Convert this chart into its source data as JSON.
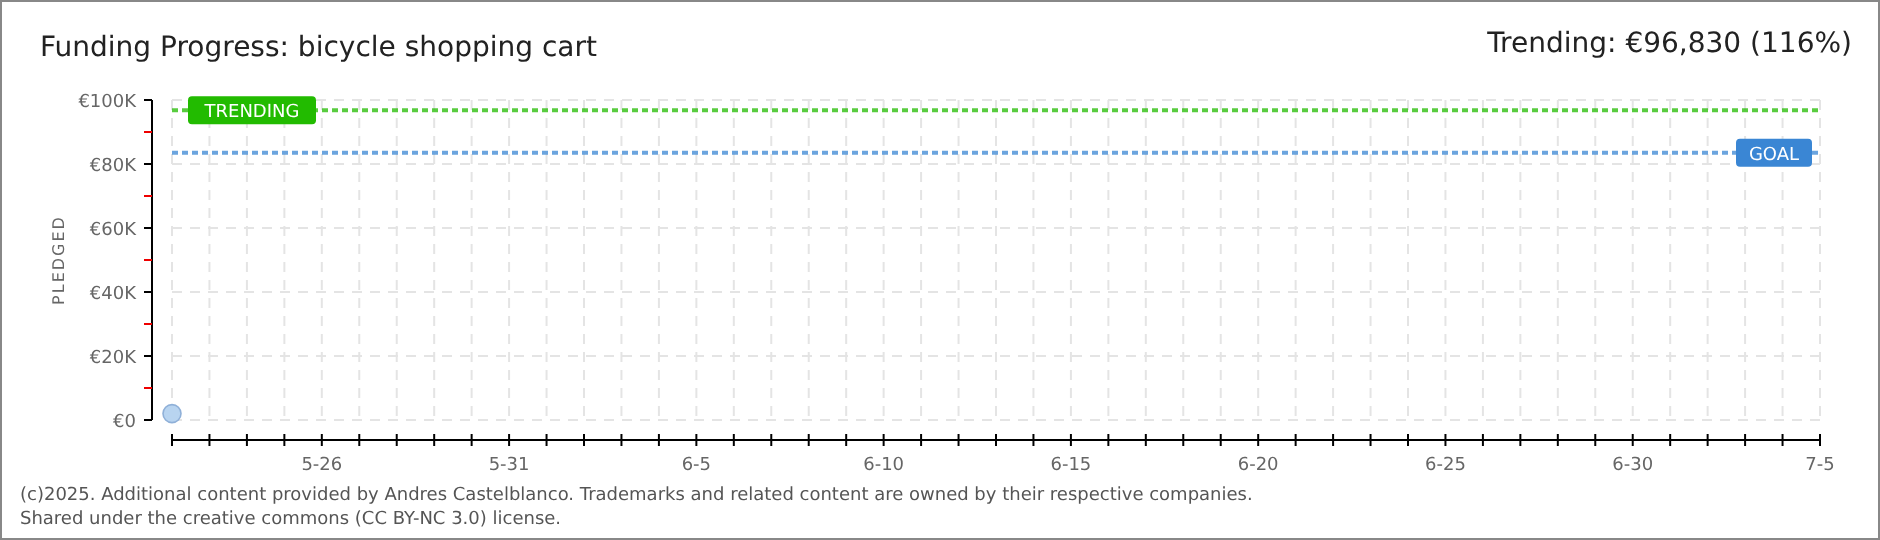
{
  "chart_data": {
    "type": "scatter",
    "title": "Funding Progress: bicycle shopping cart",
    "subtitle": "Trending: €96,830 (116%)",
    "ylabel": "PLEDGED",
    "x": [
      "--05-22"
    ],
    "series": [
      {
        "color": "#b8d4f0",
        "values": [
          2000
        ]
      }
    ],
    "marker": "circle",
    "grid": true,
    "xlim": [
      "--05-22",
      "--07-05"
    ],
    "xticks": [
      {
        "value": "--05-22",
        "label": null
      },
      {
        "value": "--05-23",
        "label": null
      },
      {
        "value": "--05-24",
        "label": null
      },
      {
        "value": "--05-25",
        "label": null
      },
      {
        "value": "--05-26",
        "label": "5-26"
      },
      {
        "value": "--05-27",
        "label": null
      },
      {
        "value": "--05-28",
        "label": null
      },
      {
        "value": "--05-29",
        "label": null
      },
      {
        "value": "--05-30",
        "label": null
      },
      {
        "value": "--05-31",
        "label": "5-31"
      },
      {
        "value": "--06-01",
        "label": null
      },
      {
        "value": "--06-02",
        "label": null
      },
      {
        "value": "--06-03",
        "label": null
      },
      {
        "value": "--06-04",
        "label": null
      },
      {
        "value": "--06-05",
        "label": "6-5"
      },
      {
        "value": "--06-06",
        "label": null
      },
      {
        "value": "--06-07",
        "label": null
      },
      {
        "value": "--06-08",
        "label": null
      },
      {
        "value": "--06-09",
        "label": null
      },
      {
        "value": "--06-10",
        "label": "6-10"
      },
      {
        "value": "--06-11",
        "label": null
      },
      {
        "value": "--06-12",
        "label": null
      },
      {
        "value": "--06-13",
        "label": null
      },
      {
        "value": "--06-14",
        "label": null
      },
      {
        "value": "--06-15",
        "label": "6-15"
      },
      {
        "value": "--06-16",
        "label": null
      },
      {
        "value": "--06-17",
        "label": null
      },
      {
        "value": "--06-18",
        "label": null
      },
      {
        "value": "--06-19",
        "label": null
      },
      {
        "value": "--06-20",
        "label": "6-20"
      },
      {
        "value": "--06-21",
        "label": null
      },
      {
        "value": "--06-22",
        "label": null
      },
      {
        "value": "--06-23",
        "label": null
      },
      {
        "value": "--06-24",
        "label": null
      },
      {
        "value": "--06-25",
        "label": "6-25"
      },
      {
        "value": "--06-26",
        "label": null
      },
      {
        "value": "--06-27",
        "label": null
      },
      {
        "value": "--06-28",
        "label": null
      },
      {
        "value": "--06-29",
        "label": null
      },
      {
        "value": "--06-30",
        "label": "6-30"
      },
      {
        "value": "--07-01",
        "label": null
      },
      {
        "value": "--07-02",
        "label": null
      },
      {
        "value": "--07-03",
        "label": null
      },
      {
        "value": "--07-04",
        "label": null
      },
      {
        "value": "--07-05",
        "label": "7-5"
      }
    ],
    "ylim": [
      0,
      100000
    ],
    "yticks": [
      {
        "value": 0,
        "label": "€0"
      },
      {
        "value": 10000,
        "label": null
      },
      {
        "value": 20000,
        "label": "€20K"
      },
      {
        "value": 30000,
        "label": null
      },
      {
        "value": 40000,
        "label": "€40K"
      },
      {
        "value": 50000,
        "label": null
      },
      {
        "value": 60000,
        "label": "€60K"
      },
      {
        "value": 70000,
        "label": null
      },
      {
        "value": 80000,
        "label": "€80K"
      },
      {
        "value": 90000,
        "label": null
      },
      {
        "value": 100000,
        "label": "€100K"
      }
    ],
    "ref_lines": [
      {
        "axis": "y",
        "value": 96830,
        "label": "TRENDING",
        "color": "#22bb00",
        "line_style": "dotted"
      },
      {
        "axis": "y",
        "value": 83500,
        "label": "GOAL",
        "color": "#3a86d4",
        "line_style": "dotted"
      }
    ],
    "annotations": [
      "(c)2025. Additional content provided by Andres Castelblanco. Trademarks and related content are owned by their respective companies.",
      "Shared under the creative commons (CC BY-NC 3.0) license."
    ]
  }
}
